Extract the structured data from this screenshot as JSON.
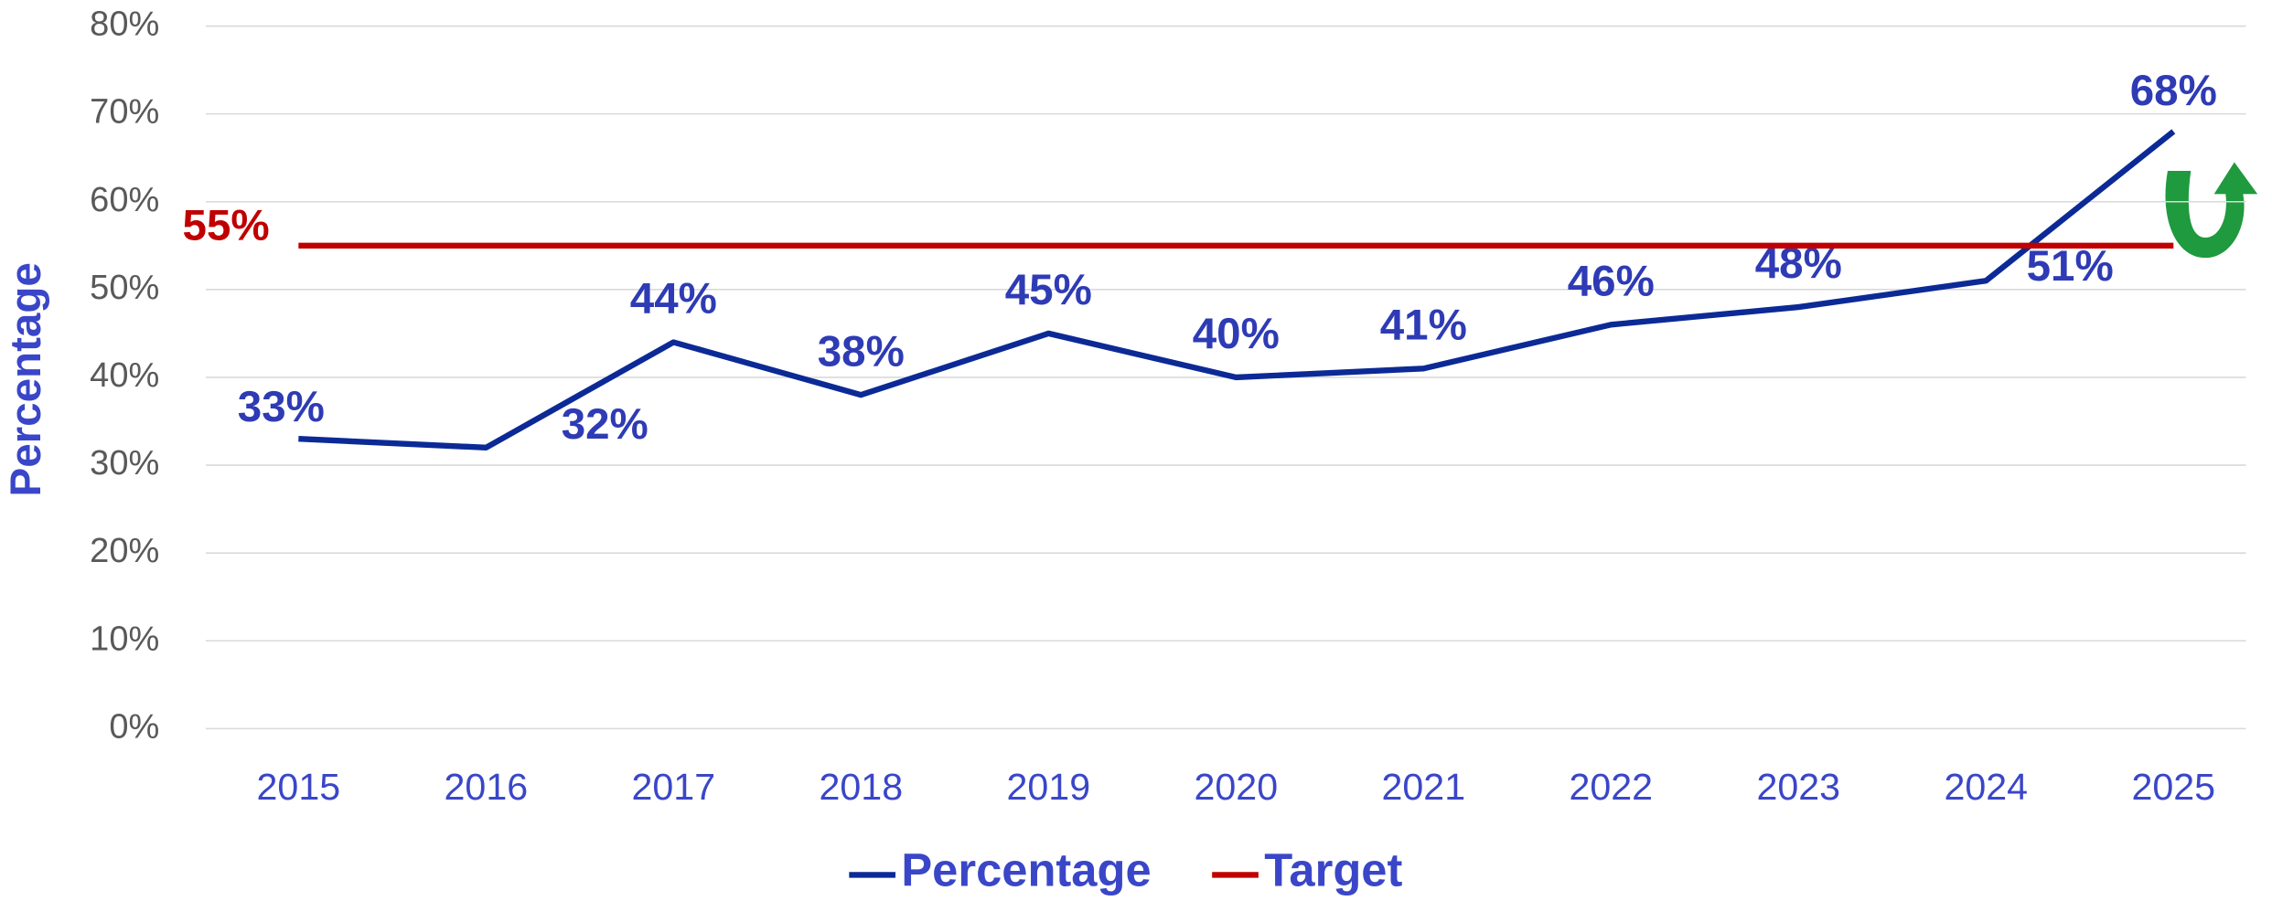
{
  "chart_data": {
    "type": "line",
    "y_label": "Percentage",
    "categories": [
      "2015",
      "2016",
      "2017",
      "2018",
      "2019",
      "2020",
      "2021",
      "2022",
      "2023",
      "2024",
      "2025"
    ],
    "series": [
      {
        "name": "Percentage",
        "color": "#0c2a96",
        "values": [
          33,
          32,
          44,
          38,
          45,
          40,
          41,
          46,
          48,
          51,
          68
        ],
        "value_labels": [
          "33%",
          "32%",
          "44%",
          "38%",
          "45%",
          "40%",
          "41%",
          "46%",
          "48%",
          "51%",
          "68%"
        ]
      },
      {
        "name": "Target",
        "color": "#c00000",
        "values": [
          55,
          55,
          55,
          55,
          55,
          55,
          55,
          55,
          55,
          55,
          55
        ],
        "value_labels": [
          "55%",
          null,
          null,
          null,
          null,
          null,
          null,
          null,
          null,
          null,
          null
        ]
      }
    ],
    "ylim": [
      0,
      80
    ],
    "yticks": [
      {
        "value": 0,
        "label": "0%"
      },
      {
        "value": 10,
        "label": "10%"
      },
      {
        "value": 20,
        "label": "20%"
      },
      {
        "value": 30,
        "label": "30%"
      },
      {
        "value": 40,
        "label": "40%"
      },
      {
        "value": 50,
        "label": "50%"
      },
      {
        "value": 60,
        "label": "60%"
      },
      {
        "value": 70,
        "label": "70%"
      },
      {
        "value": 80,
        "label": "80%"
      }
    ],
    "grid": true,
    "legend": "bottom"
  }
}
